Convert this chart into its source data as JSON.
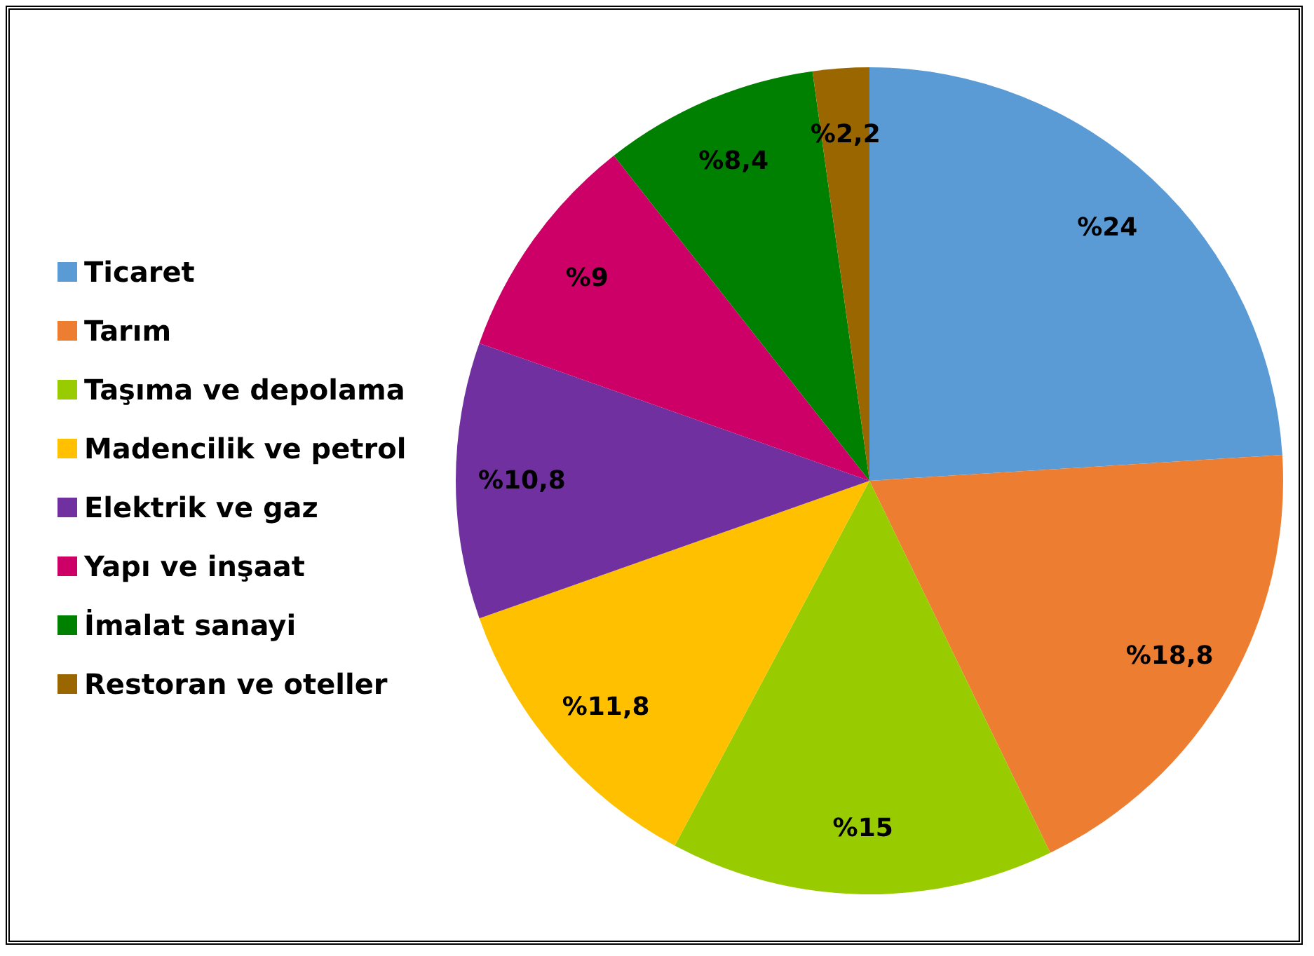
{
  "chart_data": {
    "type": "pie",
    "categories": [
      "Ticaret",
      "Tarım",
      "Taşıma ve depolama",
      "Madencilik ve petrol",
      "Elektrik ve gaz",
      "Yapı ve inşaat",
      "İmalat sanayi",
      "Restoran ve oteller"
    ],
    "values": [
      24,
      18.8,
      15,
      11.8,
      10.8,
      9,
      8.4,
      2.2
    ],
    "colors": [
      "#5b9bd5",
      "#ed7d31",
      "#99cc00",
      "#ffc000",
      "#7030a0",
      "#cc0066",
      "#008000",
      "#996600"
    ],
    "value_labels": [
      "%24",
      "%18,8",
      "%15",
      "%11,8",
      "%10,8",
      "%9",
      "%8,4",
      "%2,2"
    ],
    "legend": "left"
  }
}
